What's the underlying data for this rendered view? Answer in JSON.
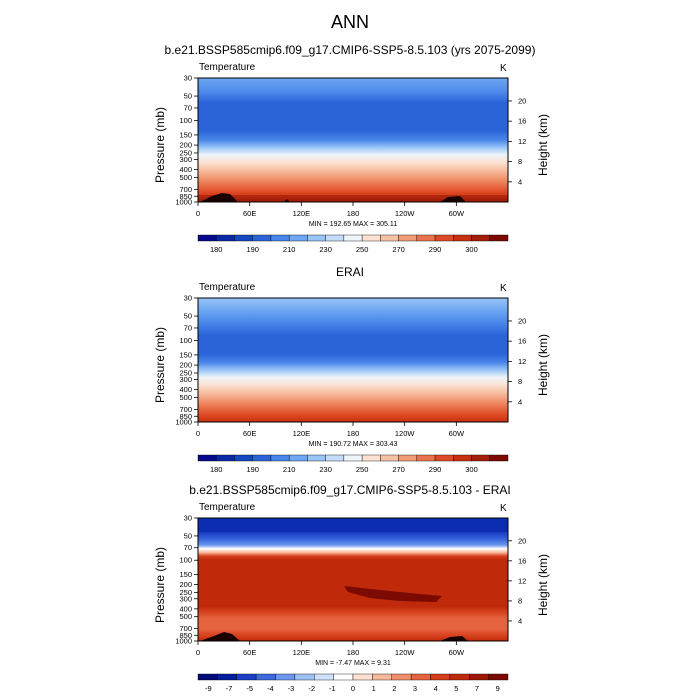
{
  "title": "ANN",
  "colors": {
    "temp_scale": [
      "#08088c",
      "#0a27a8",
      "#1447c2",
      "#2a64d8",
      "#4a86ea",
      "#6da6f2",
      "#98c4f6",
      "#c5dcf8",
      "#eef4fb",
      "#fbe2d2",
      "#f7c1a4",
      "#f29b76",
      "#ea724c",
      "#de4a26",
      "#c8300e",
      "#a51f08",
      "#7a0a02"
    ],
    "diff_scale": [
      "#000a78",
      "#001ca0",
      "#1a3ec4",
      "#3e6ae0",
      "#6b97ee",
      "#9dc0f5",
      "#cfe0f9",
      "#ffffff",
      "#fde0d0",
      "#f8b99a",
      "#f18f6a",
      "#e6633f",
      "#d63f1c",
      "#c0290a",
      "#a01805",
      "#7a0a02"
    ]
  },
  "chart_data": [
    {
      "type": "heatmap",
      "title": "b.e21.BSSP585cmip6.f09_g17.CMIP6-SSP5-8.5.103 (yrs 2075-2099)",
      "variable": "Temperature",
      "units": "K",
      "xlabel": "",
      "ylabel": "Pressure (mb)",
      "y2label": "Height (km)",
      "x_ticks": [
        "0",
        "60E",
        "120E",
        "180",
        "120W",
        "60W"
      ],
      "y_ticks": [
        "30",
        "50",
        "70",
        "100",
        "150",
        "200",
        "250",
        "300",
        "400",
        "500",
        "700",
        "850",
        "1000"
      ],
      "y2_ticks": [
        "20",
        "16",
        "12",
        "8",
        "4"
      ],
      "minmax": "MIN = 192.65  MAX = 305.11",
      "colorbar_labels": [
        "180",
        "190",
        "210",
        "230",
        "250",
        "270",
        "290",
        "300"
      ]
    },
    {
      "type": "heatmap",
      "title": "ERAI",
      "variable": "Temperature",
      "units": "K",
      "xlabel": "",
      "ylabel": "Pressure (mb)",
      "y2label": "Height (km)",
      "x_ticks": [
        "0",
        "60E",
        "120E",
        "180",
        "120W",
        "60W"
      ],
      "y_ticks": [
        "30",
        "50",
        "70",
        "100",
        "150",
        "200",
        "250",
        "300",
        "400",
        "500",
        "700",
        "850",
        "1000"
      ],
      "y2_ticks": [
        "20",
        "16",
        "12",
        "8",
        "4"
      ],
      "minmax": "MIN = 190.72  MAX = 303.43",
      "colorbar_labels": [
        "180",
        "190",
        "210",
        "230",
        "250",
        "270",
        "290",
        "300"
      ]
    },
    {
      "type": "heatmap",
      "title": "b.e21.BSSP585cmip6.f09_g17.CMIP6-SSP5-8.5.103 - ERAI",
      "variable": "Temperature",
      "units": "K",
      "xlabel": "",
      "ylabel": "Pressure (mb)",
      "y2label": "Height (km)",
      "x_ticks": [
        "0",
        "60E",
        "120E",
        "180",
        "120W",
        "60W"
      ],
      "y_ticks": [
        "30",
        "50",
        "70",
        "100",
        "150",
        "200",
        "250",
        "300",
        "400",
        "500",
        "700",
        "850",
        "1000"
      ],
      "y2_ticks": [
        "20",
        "16",
        "12",
        "8",
        "4"
      ],
      "minmax": "MIN = -7.47  MAX = 9.31",
      "colorbar_labels": [
        "-9",
        "-7",
        "-5",
        "-4",
        "-3",
        "-2",
        "-1",
        "0",
        "1",
        "2",
        "3",
        "4",
        "5",
        "7",
        "9"
      ]
    }
  ]
}
